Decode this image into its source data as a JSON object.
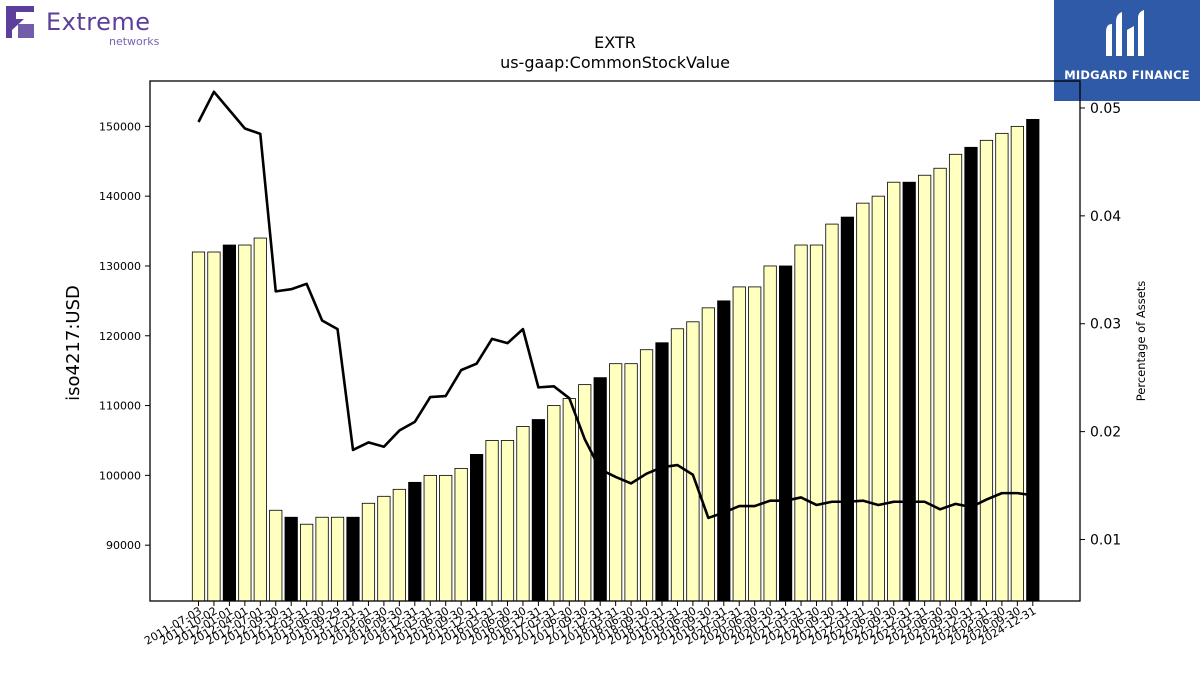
{
  "logos": {
    "left_brand": "Extreme",
    "left_sub": "networks",
    "right_brand": "MIDGARD FINANCE"
  },
  "chart_data": {
    "type": "bar",
    "title": "EXTR",
    "subtitle": "us-gaap:CommonStockValue",
    "ylabel": "iso4217:USD",
    "y2label": "Percentage of Assets",
    "ylim": [
      82000,
      156500
    ],
    "y2lim": [
      0.0043,
      0.0525
    ],
    "yticks": [
      90000,
      100000,
      110000,
      120000,
      130000,
      140000,
      150000
    ],
    "y2ticks": [
      0.01,
      0.02,
      0.03,
      0.04,
      0.05
    ],
    "y2ticklabels": [
      "0.01",
      "0.02",
      "0.03",
      "0.04",
      "0.05"
    ],
    "colors": {
      "bar_light": "#ffffc0",
      "bar_dark": "#000000",
      "line": "#000000"
    },
    "categories": [
      "2011-07-03",
      "2011-10-02",
      "2012-01-01",
      "2012-04-01",
      "2012-07-01",
      "2012-09-30",
      "2012-12-31",
      "2013-03-31",
      "2013-06-30",
      "2013-09-29",
      "2013-12-31",
      "2014-03-31",
      "2014-06-30",
      "2014-09-30",
      "2014-12-31",
      "2015-03-31",
      "2015-06-30",
      "2015-09-30",
      "2015-12-31",
      "2016-03-31",
      "2016-06-30",
      "2016-09-30",
      "2016-12-31",
      "2017-03-31",
      "2017-06-30",
      "2017-09-30",
      "2017-12-31",
      "2018-03-31",
      "2018-06-30",
      "2018-09-30",
      "2018-12-31",
      "2019-03-31",
      "2019-06-30",
      "2019-09-30",
      "2019-12-31",
      "2020-03-31",
      "2020-06-30",
      "2020-09-30",
      "2020-12-31",
      "2021-03-31",
      "2021-06-30",
      "2021-09-30",
      "2021-12-31",
      "2022-03-31",
      "2022-06-30",
      "2022-09-30",
      "2022-12-31",
      "2023-03-31",
      "2023-06-30",
      "2023-09-30",
      "2023-12-31",
      "2024-03-31",
      "2024-06-30",
      "2024-09-30",
      "2024-12-31"
    ],
    "series": [
      {
        "type": "bar",
        "values": [
          132000,
          132000,
          133000,
          133000,
          134000,
          95000,
          94000,
          93000,
          94000,
          94000,
          94000,
          96000,
          97000,
          98000,
          99000,
          100000,
          100000,
          101000,
          103000,
          105000,
          105000,
          107000,
          108000,
          110000,
          111000,
          113000,
          114000,
          116000,
          116000,
          118000,
          119000,
          121000,
          122000,
          124000,
          125000,
          127000,
          127000,
          130000,
          130000,
          133000,
          133000,
          136000,
          137000,
          139000,
          140000,
          142000,
          142000,
          143000,
          144000,
          146000,
          147000,
          148000,
          149000,
          150000,
          151000
        ],
        "dark": [
          false,
          false,
          true,
          false,
          false,
          false,
          true,
          false,
          false,
          false,
          true,
          false,
          false,
          false,
          true,
          false,
          false,
          false,
          true,
          false,
          false,
          false,
          true,
          false,
          false,
          false,
          true,
          false,
          false,
          false,
          true,
          false,
          false,
          false,
          true,
          false,
          false,
          false,
          true,
          false,
          false,
          false,
          true,
          false,
          false,
          false,
          true,
          false,
          false,
          false,
          true,
          false,
          false,
          false,
          true
        ]
      },
      {
        "type": "line",
        "axis": "right",
        "values": [
          0.0487,
          0.0515,
          0.0498,
          0.0481,
          0.0476,
          0.033,
          0.0332,
          0.0337,
          0.0303,
          0.0295,
          0.0183,
          0.019,
          0.0186,
          0.0201,
          0.0209,
          0.0232,
          0.0233,
          0.0257,
          0.0263,
          0.0286,
          0.0282,
          0.0295,
          0.0241,
          0.0242,
          0.0231,
          0.0193,
          0.0165,
          0.0158,
          0.0152,
          0.0161,
          0.0167,
          0.0169,
          0.016,
          0.012,
          0.0125,
          0.0131,
          0.0131,
          0.0136,
          0.0136,
          0.0139,
          0.0132,
          0.0135,
          0.0135,
          0.0136,
          0.0132,
          0.0135,
          0.0135,
          0.0135,
          0.0128,
          0.0133,
          0.013,
          0.0137,
          0.0143,
          0.0143,
          0.0141
        ]
      }
    ]
  }
}
